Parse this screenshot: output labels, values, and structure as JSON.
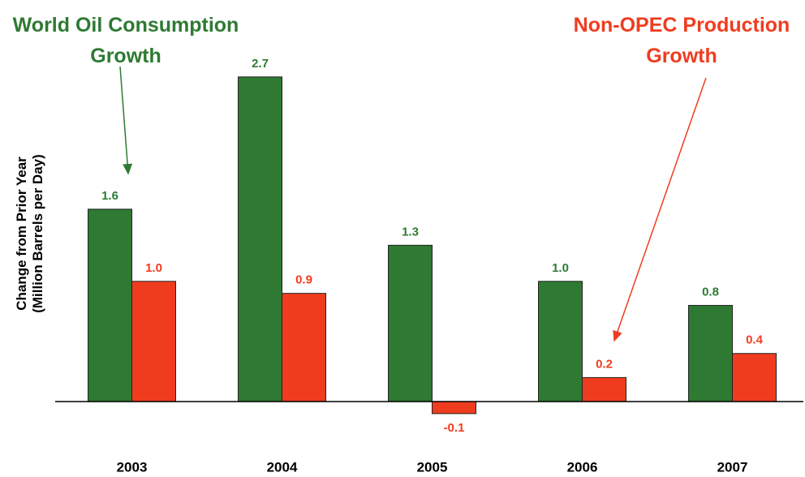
{
  "chart_data": {
    "type": "bar",
    "y_label": "Change from Prior Year (Million Barrels per Day)",
    "categories": [
      "2003",
      "2004",
      "2005",
      "2006",
      "2007"
    ],
    "series": [
      {
        "name": "World Oil Consumption Growth",
        "color": "#2e7a32",
        "values": [
          1.6,
          2.7,
          1.3,
          1.0,
          0.8
        ],
        "value_labels": [
          "1.6",
          "2.7",
          "1.3",
          "1.0",
          "0.8"
        ]
      },
      {
        "name": "Non-OPEC Production Growth",
        "color": "#f03c1e",
        "values": [
          1.0,
          0.9,
          -0.1,
          0.2,
          0.4
        ],
        "value_labels": [
          "1.0",
          "0.9",
          "-0.1",
          "0.2",
          "0.4"
        ]
      }
    ],
    "ylim": [
      -0.3,
      2.8
    ]
  }
}
